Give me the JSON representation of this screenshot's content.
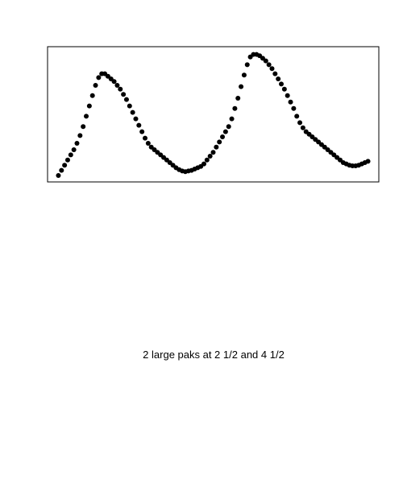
{
  "caption": "2 large paks at 2 1/2 and 4 1/2",
  "chart_data": {
    "type": "scatter",
    "title": "",
    "xlabel": "",
    "ylabel": "",
    "axes_visible": false,
    "grid": false,
    "marker_color": "#000000",
    "frame_color": "#000000",
    "series": [
      {
        "x": [
          0.0,
          0.01,
          0.02,
          0.03,
          0.04,
          0.05,
          0.06,
          0.07,
          0.08,
          0.09,
          0.1,
          0.11,
          0.12,
          0.13,
          0.14,
          0.15,
          0.16,
          0.17,
          0.18,
          0.19,
          0.2,
          0.21,
          0.22,
          0.23,
          0.24,
          0.25,
          0.26,
          0.27,
          0.28,
          0.29,
          0.3,
          0.31,
          0.32,
          0.33,
          0.34,
          0.35,
          0.36,
          0.37,
          0.38,
          0.39,
          0.4,
          0.41,
          0.42,
          0.43,
          0.44,
          0.45,
          0.46,
          0.47,
          0.48,
          0.49,
          0.5,
          0.51,
          0.52,
          0.53,
          0.54,
          0.55,
          0.56,
          0.57,
          0.58,
          0.59,
          0.6,
          0.61,
          0.62,
          0.63,
          0.64,
          0.65,
          0.66,
          0.67,
          0.68,
          0.69,
          0.7,
          0.71,
          0.72,
          0.73,
          0.74,
          0.75,
          0.76,
          0.77,
          0.78,
          0.79,
          0.8,
          0.81,
          0.82,
          0.83,
          0.84,
          0.85,
          0.86,
          0.87,
          0.88,
          0.89,
          0.9,
          0.91,
          0.92,
          0.93,
          0.94,
          0.95,
          0.96,
          0.97,
          0.98,
          0.99,
          1.0
        ],
        "y": [
          0.02,
          0.06,
          0.1,
          0.14,
          0.18,
          0.22,
          0.27,
          0.33,
          0.4,
          0.48,
          0.56,
          0.64,
          0.72,
          0.78,
          0.81,
          0.81,
          0.79,
          0.77,
          0.75,
          0.72,
          0.69,
          0.65,
          0.61,
          0.56,
          0.51,
          0.46,
          0.41,
          0.36,
          0.31,
          0.27,
          0.24,
          0.22,
          0.2,
          0.18,
          0.16,
          0.14,
          0.12,
          0.1,
          0.08,
          0.065,
          0.055,
          0.05,
          0.055,
          0.06,
          0.07,
          0.08,
          0.09,
          0.11,
          0.14,
          0.17,
          0.2,
          0.24,
          0.28,
          0.32,
          0.36,
          0.4,
          0.46,
          0.54,
          0.62,
          0.71,
          0.8,
          0.88,
          0.94,
          0.96,
          0.96,
          0.95,
          0.93,
          0.91,
          0.88,
          0.85,
          0.81,
          0.77,
          0.73,
          0.69,
          0.64,
          0.59,
          0.54,
          0.48,
          0.43,
          0.39,
          0.36,
          0.34,
          0.32,
          0.3,
          0.28,
          0.26,
          0.24,
          0.22,
          0.2,
          0.18,
          0.16,
          0.14,
          0.12,
          0.11,
          0.1,
          0.095,
          0.095,
          0.1,
          0.11,
          0.12,
          0.13
        ]
      }
    ],
    "xlim": [
      -0.035,
      1.035
    ],
    "ylim": [
      -0.03,
      1.02
    ]
  }
}
